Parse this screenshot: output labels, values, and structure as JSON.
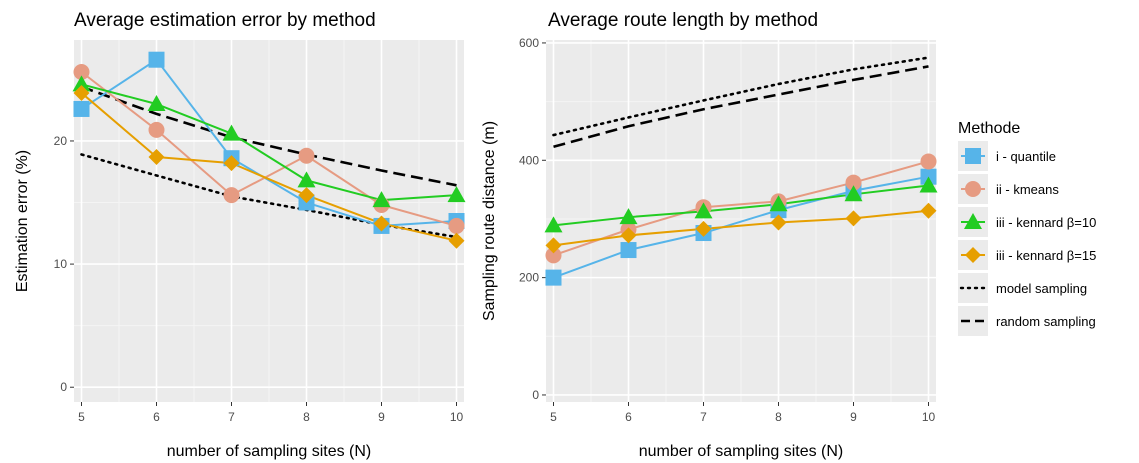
{
  "colors": {
    "panel_bg": "#ebebeb",
    "grid_major": "#ffffff",
    "grid_minor": "#f4f4f4",
    "quantile": "#56b4e9",
    "kmeans": "#e69b82",
    "kennard10": "#22cc22",
    "kennard15": "#e69f00",
    "reference": "#000000"
  },
  "chart_data": [
    {
      "type": "line",
      "title": "Average estimation error by method",
      "xlabel": "number of sampling sites (N)",
      "ylabel": "Estimation error (%)",
      "x": [
        5,
        6,
        7,
        8,
        9,
        10
      ],
      "xlim": [
        4.9,
        10.1
      ],
      "ylim": [
        -1.2,
        28.2
      ],
      "yticks": [
        0,
        10,
        20
      ],
      "series": [
        {
          "name": "i - quantile",
          "key": "quantile",
          "shape": "square",
          "line": "solid",
          "values": [
            22.6,
            26.6,
            18.6,
            15.0,
            13.1,
            13.5
          ]
        },
        {
          "name": "ii - kmeans",
          "key": "kmeans",
          "shape": "circle",
          "line": "solid",
          "values": [
            25.6,
            20.9,
            15.6,
            18.8,
            14.8,
            13.1
          ]
        },
        {
          "name": "iii - kennard β=10",
          "key": "kennard10",
          "shape": "triangle",
          "line": "solid",
          "values": [
            24.6,
            23.0,
            20.6,
            16.8,
            15.2,
            15.6
          ]
        },
        {
          "name": "iii - kennard β=15",
          "key": "kennard15",
          "shape": "diamond",
          "line": "solid",
          "values": [
            23.9,
            18.7,
            18.2,
            15.6,
            13.3,
            11.9
          ]
        },
        {
          "name": "model sampling",
          "key": "reference",
          "shape": "none",
          "line": "dotted",
          "values": [
            18.9,
            17.2,
            15.5,
            14.4,
            13.2,
            12.2
          ]
        },
        {
          "name": "random sampling",
          "key": "reference",
          "shape": "none",
          "line": "dashed",
          "values": [
            24.4,
            22.2,
            20.3,
            18.9,
            17.6,
            16.4
          ]
        }
      ]
    },
    {
      "type": "line",
      "title": "Average route length by method",
      "xlabel": "number of sampling sites (N)",
      "ylabel": "Sampling route distance (m)",
      "x": [
        5,
        6,
        7,
        8,
        9,
        10
      ],
      "xlim": [
        4.9,
        10.1
      ],
      "ylim": [
        -12,
        605
      ],
      "yticks": [
        0,
        200,
        400,
        600
      ],
      "series": [
        {
          "name": "i - quantile",
          "key": "quantile",
          "shape": "square",
          "line": "solid",
          "values": [
            200,
            247,
            276,
            315,
            348,
            372
          ]
        },
        {
          "name": "ii - kmeans",
          "key": "kmeans",
          "shape": "circle",
          "line": "solid",
          "values": [
            238,
            282,
            320,
            330,
            362,
            398
          ]
        },
        {
          "name": "iii - kennard β=10",
          "key": "kennard10",
          "shape": "triangle",
          "line": "solid",
          "values": [
            289,
            303,
            313,
            325,
            342,
            357
          ]
        },
        {
          "name": "iii - kennard β=15",
          "key": "kennard15",
          "shape": "diamond",
          "line": "solid",
          "values": [
            255,
            272,
            283,
            294,
            301,
            314
          ]
        },
        {
          "name": "model sampling",
          "key": "reference",
          "shape": "none",
          "line": "dotted",
          "values": [
            443,
            473,
            502,
            530,
            555,
            575
          ]
        },
        {
          "name": "random sampling",
          "key": "reference",
          "shape": "none",
          "line": "dashed",
          "values": [
            423,
            458,
            487,
            512,
            537,
            560
          ]
        }
      ]
    }
  ],
  "legend": {
    "title": "Methode",
    "placement": "right",
    "items": [
      {
        "label": "i - quantile",
        "key": "quantile",
        "shape": "square",
        "line": "solid"
      },
      {
        "label": "ii - kmeans",
        "key": "kmeans",
        "shape": "circle",
        "line": "solid"
      },
      {
        "label": "iii - kennard β=10",
        "key": "kennard10",
        "shape": "triangle",
        "line": "solid"
      },
      {
        "label": "iii - kennard β=15",
        "key": "kennard15",
        "shape": "diamond",
        "line": "solid"
      },
      {
        "label": "model sampling",
        "key": "reference",
        "shape": "none",
        "line": "dotted"
      },
      {
        "label": "random sampling",
        "key": "reference",
        "shape": "none",
        "line": "dashed"
      }
    ]
  }
}
